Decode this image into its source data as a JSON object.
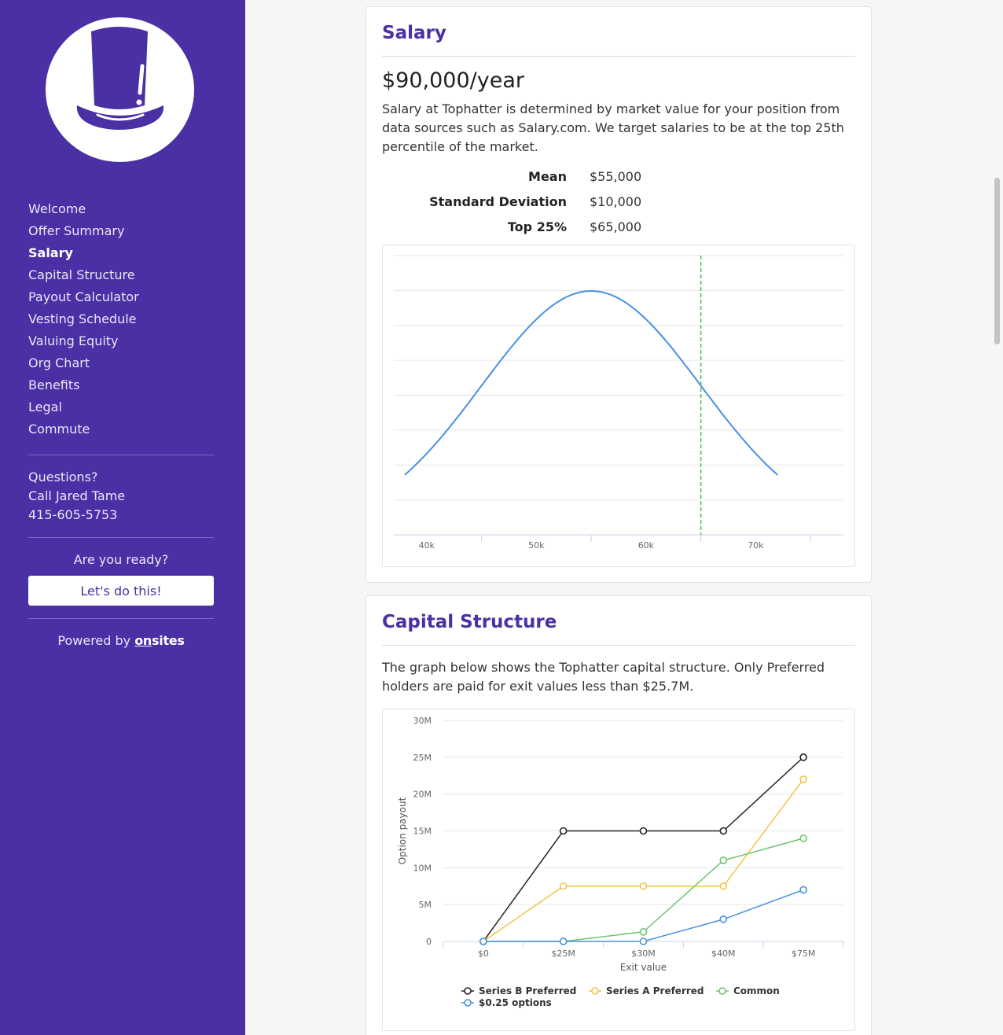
{
  "sidebar": {
    "logo_icon": "top-hat-logo-icon",
    "nav": [
      {
        "label": "Welcome",
        "active": false
      },
      {
        "label": "Offer Summary",
        "active": false
      },
      {
        "label": "Salary",
        "active": true
      },
      {
        "label": "Capital Structure",
        "active": false
      },
      {
        "label": "Payout Calculator",
        "active": false
      },
      {
        "label": "Vesting Schedule",
        "active": false
      },
      {
        "label": "Valuing Equity",
        "active": false
      },
      {
        "label": "Org Chart",
        "active": false
      },
      {
        "label": "Benefits",
        "active": false
      },
      {
        "label": "Legal",
        "active": false
      },
      {
        "label": "Commute",
        "active": false
      }
    ],
    "questions_label": "Questions?",
    "contact_name": "Call Jared Tame",
    "contact_phone": "415-605-5753",
    "ready_label": "Are you ready?",
    "cta_label": "Let's do this!",
    "powered_prefix": "Powered by",
    "powered_brand_a": "on",
    "powered_brand_b": "sites",
    "accent_color": "#4a30a4"
  },
  "salary": {
    "title": "Salary",
    "amount": "$90,000/year",
    "description": "Salary at Tophatter is determined by market value for your position from data sources such as Salary.com. We target salaries to be at the top 25th percentile of the market.",
    "stats": [
      {
        "label": "Mean",
        "value": "$55,000"
      },
      {
        "label": "Standard Deviation",
        "value": "$10,000"
      },
      {
        "label": "Top 25%",
        "value": "$65,000"
      }
    ]
  },
  "capital": {
    "title": "Capital Structure",
    "description": "The graph below shows the Tophatter capital structure. Only Preferred holders are paid for exit values less than $25.7M."
  },
  "chart_data": [
    {
      "type": "line",
      "subtype": "normal-distribution",
      "mean": 55000,
      "std": 10000,
      "x_range": [
        38000,
        72000
      ],
      "xlim": [
        37000,
        78000
      ],
      "marker_x": 65000,
      "marker_style": "dashed",
      "marker_color": "#3cc45a",
      "line_color": "#4a90e2",
      "x_ticks": [
        "40k",
        "50k",
        "60k",
        "70k"
      ],
      "x_tick_values": [
        40000,
        50000,
        60000,
        70000
      ],
      "grid": true
    },
    {
      "type": "line",
      "categories": [
        "$0",
        "$25M",
        "$30M",
        "$40M",
        "$75M"
      ],
      "xlabel": "Exit value",
      "ylabel": "Option payout",
      "ylim": [
        0,
        30
      ],
      "y_ticks": [
        "0",
        "5M",
        "10M",
        "15M",
        "20M",
        "25M",
        "30M"
      ],
      "y_tick_values": [
        0,
        5,
        10,
        15,
        20,
        25,
        30
      ],
      "grid": true,
      "legend_position": "bottom",
      "series": [
        {
          "name": "Series B Preferred",
          "color": "#222222",
          "values": [
            0,
            15,
            15,
            15,
            25
          ]
        },
        {
          "name": "Series A Preferred",
          "color": "#f5c342",
          "values": [
            0,
            7.5,
            7.5,
            7.5,
            22
          ]
        },
        {
          "name": "Common",
          "color": "#6cc56f",
          "values": [
            0,
            0,
            1.3,
            11,
            14
          ]
        },
        {
          "name": "$0.25 options",
          "color": "#4a90e2",
          "values": [
            0,
            0,
            0,
            3,
            7
          ]
        }
      ]
    }
  ]
}
